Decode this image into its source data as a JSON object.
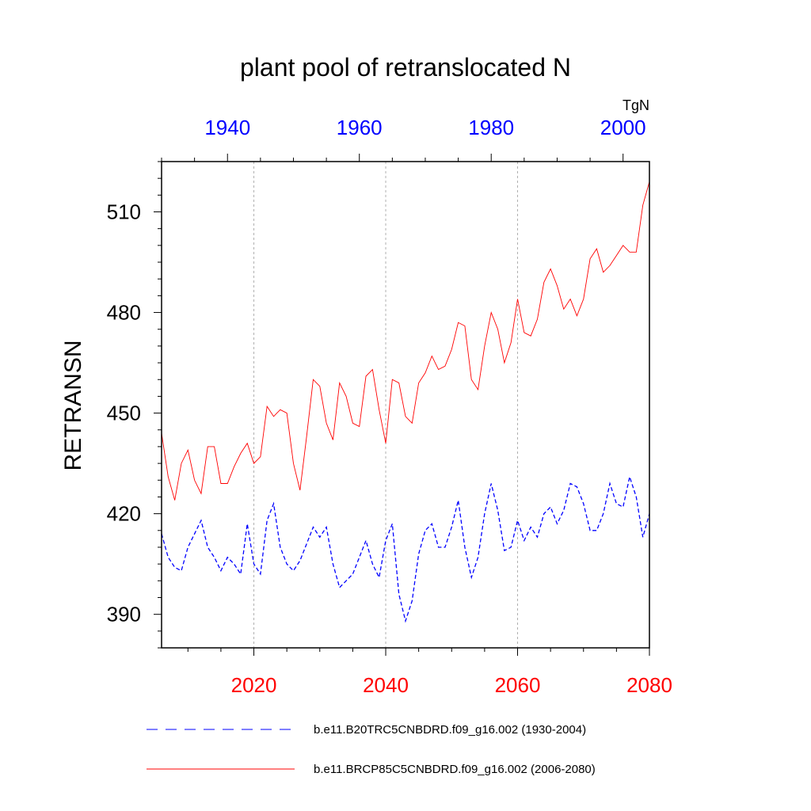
{
  "chart_data": {
    "type": "line",
    "title": "plant pool of retranslocated N",
    "units": "TgN",
    "ylabel": "RETRANSN",
    "ylim": [
      380,
      525
    ],
    "y_ticks": [
      390,
      420,
      450,
      480,
      510
    ],
    "y_tick_labels": [
      "390",
      "420",
      "450",
      "480",
      "510"
    ],
    "x_bottom": {
      "range": [
        2006,
        2080
      ],
      "ticks": [
        2020,
        2040,
        2060,
        2080
      ],
      "tick_labels": [
        "2020",
        "2040",
        "2060",
        "2080"
      ],
      "color": "#ff0000"
    },
    "x_top": {
      "range": [
        1930,
        2004
      ],
      "ticks": [
        1940,
        1960,
        1980,
        2000
      ],
      "tick_labels": [
        "1940",
        "1960",
        "1980",
        "2000"
      ],
      "color": "#0000ff"
    },
    "grid": "vertical dashed at bottom-axis major ticks",
    "legend_position": "bottom",
    "series": [
      {
        "name": "b.e11.B20TRC5CNBDRD.f09_g16.002 (1930-2004)",
        "axis": "top",
        "color": "#0000ff",
        "style": "dashed",
        "start_year": 1930,
        "values": [
          414,
          407,
          404,
          403,
          410,
          414,
          418,
          410,
          407,
          403,
          407,
          405,
          402,
          417,
          405,
          402,
          418,
          423,
          410,
          405,
          403,
          406,
          411,
          416,
          413,
          416,
          405,
          398,
          400,
          402,
          407,
          412,
          405,
          401,
          412,
          417,
          396,
          388,
          394,
          408,
          415,
          417,
          410,
          410,
          416,
          424,
          410,
          401,
          407,
          420,
          429,
          421,
          409,
          410,
          418,
          412,
          416,
          413,
          420,
          422,
          417,
          421,
          429,
          428,
          423,
          415,
          415,
          420,
          429,
          423,
          422,
          431,
          425,
          413,
          420
        ]
      },
      {
        "name": "b.e11.BRCP85C5CNBDRD.f09_g16.002 (2006-2080)",
        "axis": "bottom",
        "color": "#ff0000",
        "style": "solid",
        "start_year": 2006,
        "values": [
          444,
          431,
          424,
          435,
          439,
          430,
          426,
          440,
          440,
          429,
          429,
          434,
          438,
          441,
          435,
          437,
          452,
          449,
          451,
          450,
          435,
          427,
          443,
          460,
          458,
          447,
          442,
          459,
          455,
          447,
          446,
          461,
          463,
          451,
          441,
          460,
          459,
          449,
          447,
          459,
          462,
          467,
          463,
          464,
          469,
          477,
          476,
          460,
          457,
          470,
          480,
          475,
          465,
          471,
          484,
          474,
          473,
          478,
          489,
          493,
          488,
          481,
          484,
          479,
          484,
          496,
          499,
          492,
          494,
          497,
          500,
          498,
          498,
          512,
          519
        ]
      }
    ]
  }
}
